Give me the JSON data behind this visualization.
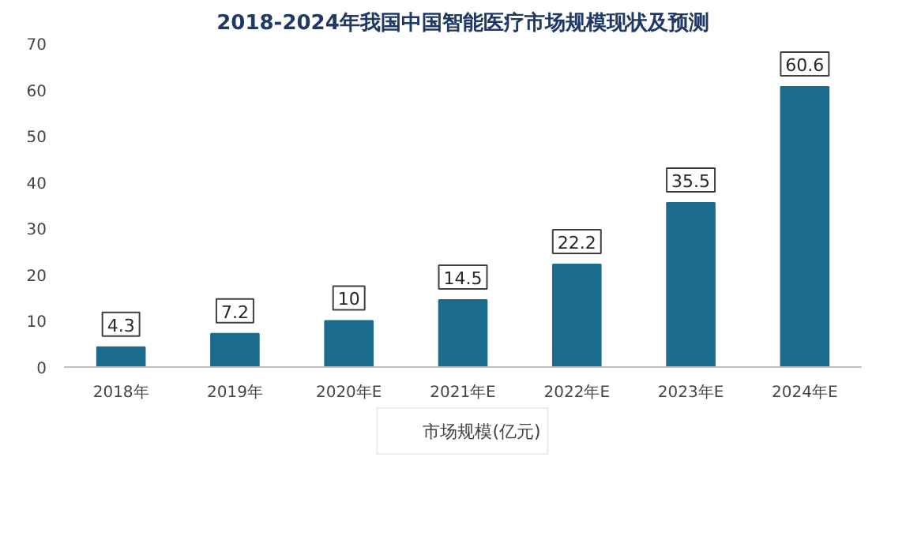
{
  "chart_data": {
    "type": "bar",
    "title": "2018-2024年我国中国智能医疗市场规模现状及预测",
    "categories": [
      "2018年",
      "2019年",
      "2020年E",
      "2021年E",
      "2022年E",
      "2023年E",
      "2024年E"
    ],
    "series": [
      {
        "name": "市场规模(亿元)",
        "color": "#1b6b8c",
        "values": [
          4.3,
          7.2,
          10,
          14.5,
          22.2,
          35.5,
          60.6
        ]
      }
    ],
    "ylim": [
      0,
      70
    ],
    "yticks": [
      0,
      10,
      20,
      30,
      40,
      50,
      60,
      70
    ],
    "grid": false,
    "legend": "bottom",
    "data_labels": true
  }
}
